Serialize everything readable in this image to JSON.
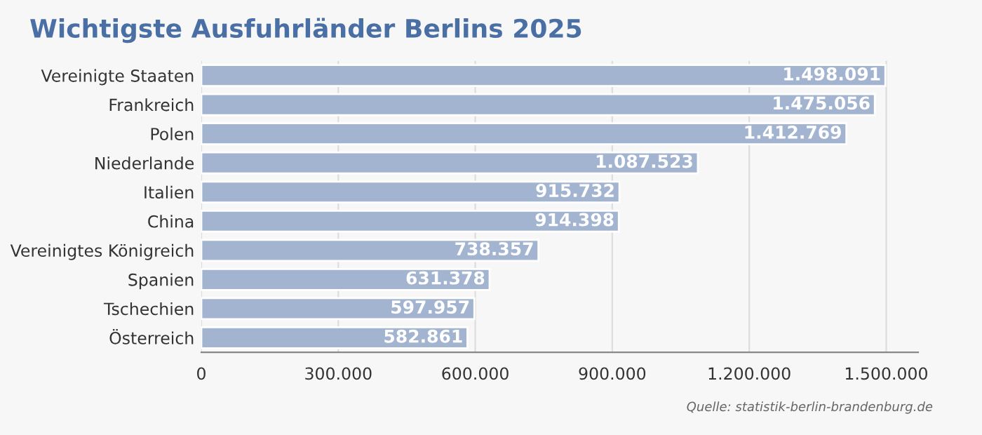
{
  "chart_data": {
    "type": "bar",
    "orientation": "horizontal",
    "title": "Wichtigste Ausfuhrländer Berlins 2025",
    "categories": [
      "Vereinigte Staaten",
      "Frankreich",
      "Polen",
      "Niederlande",
      "Italien",
      "China",
      "Vereinigtes Königreich",
      "Spanien",
      "Tschechien",
      "Österreich"
    ],
    "values": [
      1498091,
      1475056,
      1412769,
      1087523,
      915732,
      914398,
      738357,
      631378,
      597957,
      582861
    ],
    "value_labels": [
      "1.498.091",
      "1.475.056",
      "1.412.769",
      "1.087.523",
      "915.732",
      "914.398",
      "738.357",
      "631.378",
      "597.957",
      "582.861"
    ],
    "color": "#a3b4d0",
    "xlim": [
      0,
      1570000
    ],
    "xticks": [
      0,
      {
        "value": 300000,
        "label": "300.000"
      },
      {
        "value": 600000,
        "label": "600.000"
      },
      {
        "value": 900000,
        "label": "900.000"
      },
      {
        "value": 1200000,
        "label": "1.200.000"
      },
      {
        "value": 1500000,
        "label": "1.500.000"
      }
    ],
    "grid": "x",
    "legend": false,
    "annotations": [
      "Quelle: statistik-berlin-brandenburg.de"
    ]
  }
}
